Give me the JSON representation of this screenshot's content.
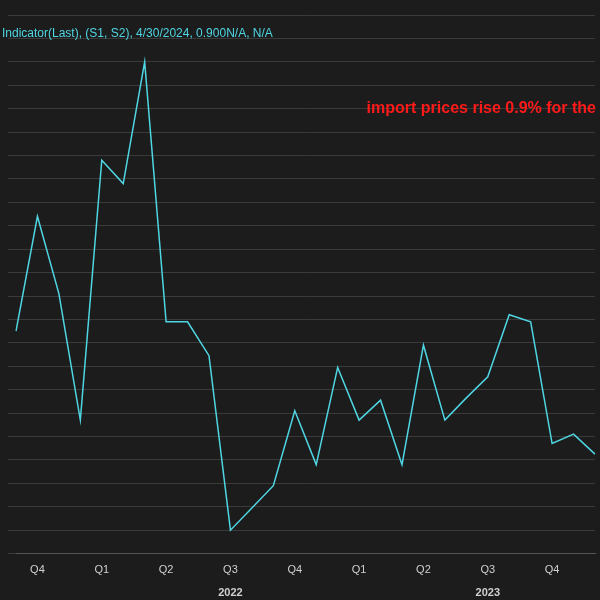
{
  "chart_data": {
    "type": "line",
    "title": "Indicator(Last), (S1, S2), 4/30/2024, 0.900N/A, N/A",
    "annotations": [
      "import prices rise 0.9% for the"
    ],
    "categories": [
      null,
      "Q4",
      null,
      null,
      "Q1",
      null,
      null,
      "Q2",
      null,
      null,
      "Q3",
      null,
      null,
      "Q4",
      null,
      null,
      "Q1",
      null,
      null,
      "Q2",
      null,
      null,
      "Q3",
      null,
      null,
      "Q4",
      null,
      null
    ],
    "years": [
      null,
      null,
      null,
      null,
      null,
      null,
      null,
      null,
      null,
      null,
      "2022",
      null,
      null,
      null,
      null,
      null,
      null,
      null,
      null,
      null,
      null,
      null,
      "2023",
      null,
      null,
      null,
      null,
      null
    ],
    "values": [
      0.3,
      1.28,
      0.62,
      -0.46,
      1.76,
      1.56,
      2.6,
      0.38,
      0.38,
      0.09,
      -1.4,
      -1.21,
      -1.02,
      -0.38,
      -0.84,
      -0.01,
      -0.46,
      -0.29,
      -0.84,
      0.18,
      -0.46,
      -0.27,
      -0.09,
      0.44,
      0.38,
      -0.66,
      -0.58,
      -0.75
    ],
    "color": "#4fd6e3",
    "ylim": [
      -1.6,
      3.0
    ],
    "yticks": [
      -1.6,
      -1.4,
      -1.2,
      -1.0,
      -0.8,
      -0.6,
      -0.4,
      -0.2,
      0,
      0.2,
      0.4,
      0.6,
      0.8,
      1.0,
      1.2,
      1.4,
      1.6,
      1.8,
      2.0,
      2.2,
      2.4,
      2.6,
      2.8,
      3.0
    ],
    "grid": true,
    "tick_labels": "x"
  }
}
